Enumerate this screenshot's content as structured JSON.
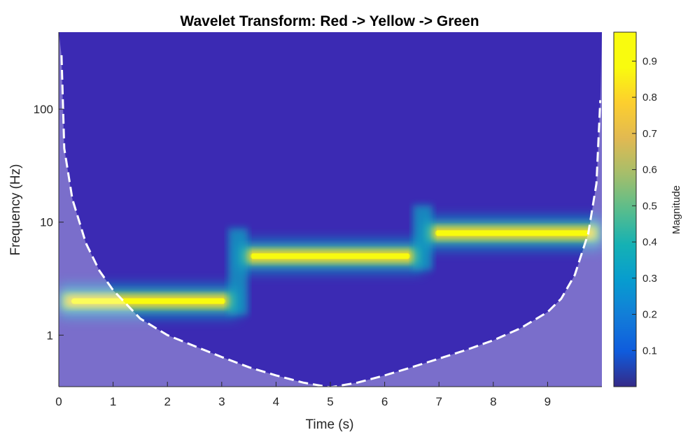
{
  "chart_data": {
    "type": "heatmap",
    "title": "Wavelet Transform: Red -> Yellow -> Green",
    "xlabel": "Time (s)",
    "ylabel": "Frequency (Hz)",
    "xlim": [
      0,
      10
    ],
    "ylim": [
      0.35,
      480
    ],
    "yscale": "log",
    "x_ticks": [
      0,
      1,
      2,
      3,
      4,
      5,
      6,
      7,
      8,
      9
    ],
    "y_ticks": [
      1,
      10,
      100
    ],
    "colormap": "parula",
    "colorbar": {
      "label": "Magnitude",
      "range": [
        0,
        0.98
      ],
      "ticks": [
        0.1,
        0.2,
        0.3,
        0.4,
        0.5,
        0.6,
        0.7,
        0.8,
        0.9
      ]
    },
    "ridges": [
      {
        "t_start": 0.0,
        "t_end": 3.3,
        "frequency": 2,
        "peak_magnitude": 0.95
      },
      {
        "t_start": 3.3,
        "t_end": 6.7,
        "frequency": 5,
        "peak_magnitude": 0.98
      },
      {
        "t_start": 6.7,
        "t_end": 10.0,
        "frequency": 8,
        "peak_magnitude": 0.98
      }
    ],
    "cone_of_influence": {
      "style": "white dashed",
      "points": [
        [
          0.05,
          300
        ],
        [
          0.1,
          45
        ],
        [
          0.25,
          16
        ],
        [
          0.5,
          6.5
        ],
        [
          0.75,
          3.7
        ],
        [
          1.0,
          2.5
        ],
        [
          1.5,
          1.4
        ],
        [
          2.0,
          1.0
        ],
        [
          2.5,
          0.8
        ],
        [
          3.0,
          0.64
        ],
        [
          3.5,
          0.52
        ],
        [
          4.0,
          0.44
        ],
        [
          4.5,
          0.38
        ],
        [
          5.0,
          0.345
        ],
        [
          5.5,
          0.38
        ],
        [
          6.0,
          0.44
        ],
        [
          6.5,
          0.52
        ],
        [
          7.0,
          0.62
        ],
        [
          7.5,
          0.74
        ],
        [
          8.0,
          0.9
        ],
        [
          8.5,
          1.15
        ],
        [
          9.0,
          1.6
        ],
        [
          9.25,
          2.1
        ],
        [
          9.5,
          3.4
        ],
        [
          9.75,
          8.0
        ],
        [
          9.9,
          22
        ],
        [
          9.97,
          120
        ]
      ]
    }
  }
}
